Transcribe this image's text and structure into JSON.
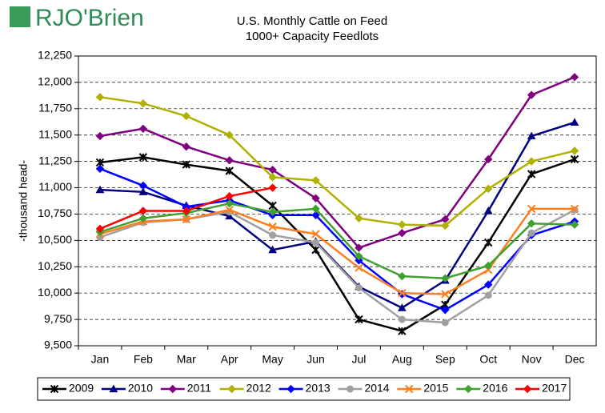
{
  "logo": "RJO'Brien",
  "chart_data": {
    "type": "line",
    "title": "U.S. Monthly Cattle on Feed",
    "subtitle": "1000+ Capacity Feedlots",
    "y_label": "-thousand head-",
    "categories": [
      "Jan",
      "Feb",
      "Mar",
      "Apr",
      "May",
      "Jun",
      "Jul",
      "Aug",
      "Sep",
      "Oct",
      "Nov",
      "Dec"
    ],
    "ylim": [
      9500,
      12250
    ],
    "yticks": [
      {
        "value": 9500,
        "label": "9,500"
      },
      {
        "value": 9750,
        "label": "9,750"
      },
      {
        "value": 10000,
        "label": "10,000"
      },
      {
        "value": 10250,
        "label": "10,250"
      },
      {
        "value": 10500,
        "label": "10,500"
      },
      {
        "value": 10750,
        "label": "10,750"
      },
      {
        "value": 11000,
        "label": "11,000"
      },
      {
        "value": 11250,
        "label": "11,250"
      },
      {
        "value": 11500,
        "label": "11,500"
      },
      {
        "value": 11750,
        "label": "11,750"
      },
      {
        "value": 12000,
        "label": "12,000"
      },
      {
        "value": 12250,
        "label": "12,250"
      }
    ],
    "grid": true,
    "legend": "bottom",
    "series": [
      {
        "name": "2009",
        "color": "#000000",
        "marker": "star",
        "values": [
          11240,
          11290,
          11220,
          11160,
          10830,
          10410,
          9750,
          9640,
          9890,
          10480,
          11130,
          11270
        ]
      },
      {
        "name": "2010",
        "color": "#000080",
        "marker": "triangle",
        "values": [
          10980,
          10960,
          10830,
          10730,
          10410,
          10490,
          10060,
          9860,
          10120,
          10780,
          11490,
          11620
        ]
      },
      {
        "name": "2011",
        "color": "#800080",
        "marker": "diamond",
        "values": [
          11490,
          11560,
          11390,
          11260,
          11170,
          10900,
          10430,
          10570,
          10700,
          11270,
          11880,
          12050
        ]
      },
      {
        "name": "2012",
        "color": "#b0b000",
        "marker": "diamond",
        "values": [
          11860,
          11800,
          11680,
          11500,
          11100,
          11070,
          10710,
          10650,
          10640,
          10990,
          11250,
          11350
        ]
      },
      {
        "name": "2013",
        "color": "#0000ff",
        "marker": "diamond",
        "values": [
          11180,
          11020,
          10820,
          10880,
          10740,
          10740,
          10310,
          9990,
          9840,
          10080,
          10550,
          10680
        ]
      },
      {
        "name": "2014",
        "color": "#a0a0a0",
        "marker": "circle",
        "values": [
          10530,
          10670,
          10700,
          10770,
          10550,
          10480,
          10050,
          9750,
          9720,
          9980,
          10570,
          10790
        ]
      },
      {
        "name": "2015",
        "color": "#ff7f20",
        "marker": "x",
        "values": [
          10560,
          10680,
          10700,
          10790,
          10630,
          10560,
          10240,
          10000,
          9990,
          10220,
          10800,
          10800
        ]
      },
      {
        "name": "2016",
        "color": "#40a030",
        "marker": "diamond",
        "values": [
          10580,
          10710,
          10760,
          10850,
          10770,
          10800,
          10350,
          10160,
          10140,
          10260,
          10660,
          10650
        ]
      },
      {
        "name": "2017",
        "color": "#ff0000",
        "marker": "diamond",
        "values": [
          10610,
          10780,
          10780,
          10920,
          11000,
          null,
          null,
          null,
          null,
          null,
          null,
          null
        ]
      }
    ]
  }
}
